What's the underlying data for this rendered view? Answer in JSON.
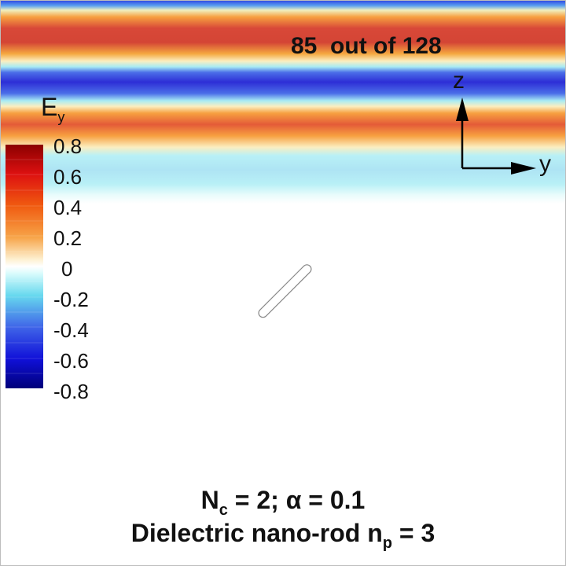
{
  "frame_counter": {
    "current": "85",
    "separator": "out of",
    "total": "128"
  },
  "axes": {
    "vertical": "z",
    "horizontal": "y"
  },
  "colorbar": {
    "title_main": "E",
    "title_sub": "y",
    "ticks": [
      "0.8",
      "0.6",
      "0.4",
      "0.2",
      "0",
      "-0.2",
      "-0.4",
      "-0.6",
      "-0.8"
    ],
    "range": [
      -0.8,
      0.8
    ]
  },
  "caption": {
    "line1_n": "N",
    "line1_n_sub": "c",
    "line1_rest": " = 2; α = 0.1",
    "line2_main": "Dielectric nano-rod n",
    "line2_sub": "p",
    "line2_rest": " = 3"
  },
  "colors": {
    "max": "#8b0000",
    "zero": "#ffffff",
    "min": "#00007a",
    "outline": "#888888"
  }
}
